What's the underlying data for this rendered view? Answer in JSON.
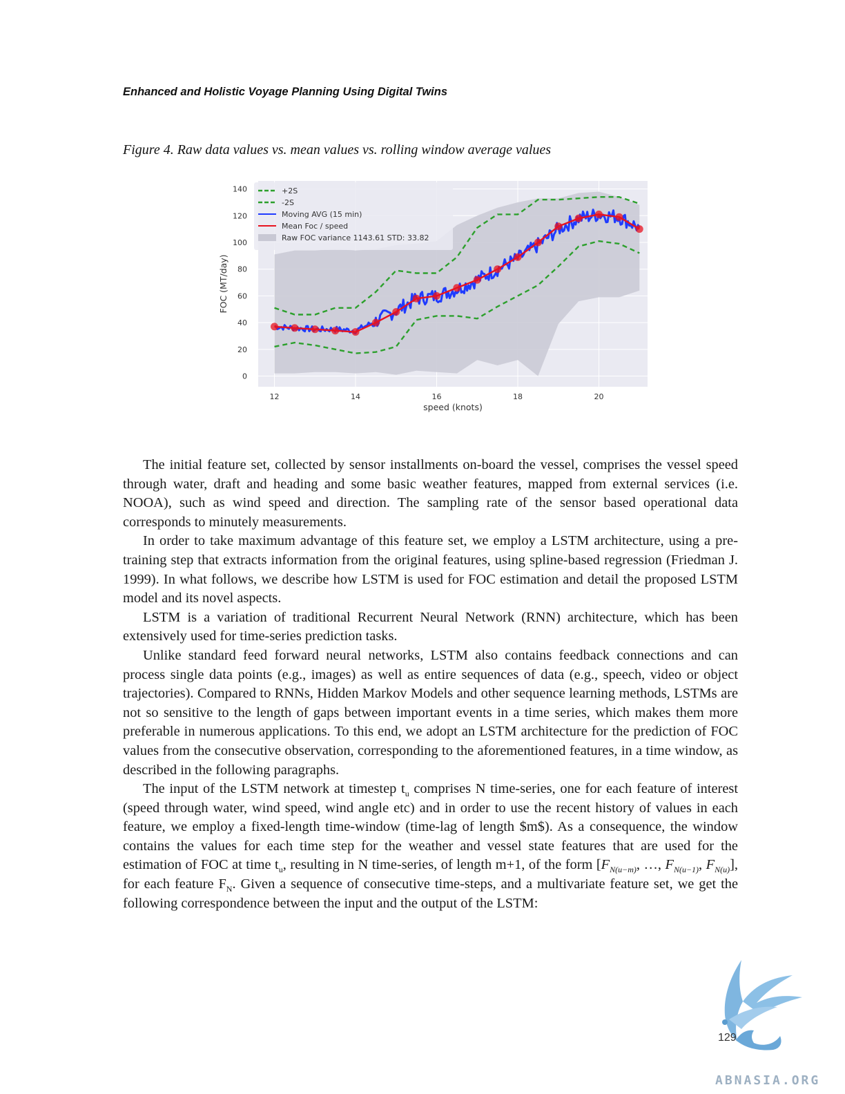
{
  "header": {
    "running_title": "Enhanced and Holistic Voyage Planning Using Digital Twins"
  },
  "figure": {
    "caption": "Figure 4. Raw data values vs. mean values vs. rolling window average values"
  },
  "chart_data": {
    "type": "line",
    "xlabel": "speed (knots)",
    "ylabel": "FOC (MT/day)",
    "xlim": [
      11.6,
      21.2
    ],
    "ylim": [
      -8,
      146
    ],
    "x_ticks": [
      12,
      14,
      16,
      18,
      20
    ],
    "y_ticks": [
      0,
      20,
      40,
      60,
      80,
      100,
      120,
      140
    ],
    "grid": true,
    "legend_placement": "top-left",
    "legend": [
      {
        "label": "+2S",
        "color": "#2ca02c",
        "style": "dashed"
      },
      {
        "label": "-2S",
        "color": "#2ca02c",
        "style": "dashed"
      },
      {
        "label": "Moving AVG (15 min)",
        "color": "#1f3bff",
        "style": "solid"
      },
      {
        "label": "Mean Foc / speed",
        "color": "#e8131f",
        "style": "solid"
      },
      {
        "label": "Raw FOC variance  1143.61 STD: 33.82",
        "color": "#c8c8d4",
        "style": "patch"
      }
    ],
    "colors": {
      "background": "#eaeaf2",
      "variance_fill": "#cbcbd6",
      "two_sigma": "#2ca02c",
      "moving_avg": "#1f3bff",
      "mean": "#e8131f"
    },
    "series": [
      {
        "name": "+2S",
        "x": [
          12.0,
          12.5,
          13.0,
          13.5,
          14.0,
          14.5,
          15.0,
          15.5,
          16.0,
          16.5,
          17.0,
          17.5,
          18.0,
          18.5,
          19.0,
          19.5,
          20.0,
          20.5,
          21.0
        ],
        "values": [
          51,
          46,
          46,
          51,
          51,
          63,
          79,
          77,
          77,
          89,
          111,
          121,
          121,
          132,
          132,
          133,
          134,
          134,
          129
        ]
      },
      {
        "name": "-2S",
        "x": [
          12.0,
          12.5,
          13.0,
          13.5,
          14.0,
          14.5,
          15.0,
          15.5,
          16.0,
          16.5,
          17.0,
          17.5,
          18.0,
          18.5,
          19.0,
          19.5,
          20.0,
          20.5,
          21.0
        ],
        "values": [
          22,
          25,
          23,
          20,
          17,
          18,
          22,
          42,
          45,
          45,
          43,
          52,
          60,
          68,
          82,
          97,
          101,
          99,
          92
        ]
      },
      {
        "name": "Mean Foc / speed",
        "x": [
          12.0,
          12.5,
          13.0,
          13.5,
          14.0,
          14.5,
          15.0,
          15.5,
          16.0,
          16.5,
          17.0,
          17.5,
          18.0,
          18.5,
          19.0,
          19.5,
          20.0,
          20.5,
          21.0
        ],
        "values": [
          37,
          36,
          35,
          34,
          33,
          40,
          48,
          58,
          60,
          66,
          72,
          80,
          89,
          100,
          112,
          118,
          121,
          119,
          110
        ]
      },
      {
        "name": "Moving AVG (15 min)",
        "x": [
          12.0,
          12.5,
          13.0,
          13.5,
          14.0,
          14.5,
          15.0,
          15.5,
          16.0,
          16.5,
          17.0,
          17.5,
          18.0,
          18.5,
          19.0,
          19.5,
          20.0,
          20.5,
          21.0
        ],
        "values": [
          37,
          36,
          35,
          35,
          34,
          41,
          49,
          58,
          60,
          65,
          72,
          80,
          88,
          98,
          110,
          118,
          121,
          119,
          111
        ]
      },
      {
        "name": "Raw FOC variance  1143.61 STD: 33.82",
        "x": [
          12.0,
          12.5,
          13.0,
          13.5,
          14.0,
          14.5,
          15.0,
          15.5,
          16.0,
          16.5,
          17.0,
          17.5,
          18.0,
          18.5,
          19.0,
          19.5,
          20.0,
          20.5,
          21.0
        ],
        "upper": [
          91,
          94,
          94,
          95,
          94,
          95,
          98,
          99,
          101,
          113,
          120,
          126,
          130,
          133,
          133,
          137,
          138,
          134,
          128
        ],
        "lower": [
          2,
          2,
          3,
          3,
          2,
          3,
          1,
          4,
          3,
          2,
          12,
          8,
          12,
          0,
          39,
          56,
          59,
          59,
          64
        ]
      }
    ]
  },
  "body": {
    "p1": "The initial feature set, collected by sensor installments on-board the vessel, comprises the vessel speed through water, draft and heading and some basic weather features, mapped from external services (i.e. NOOA), such as wind speed and direction. The sampling rate of the sensor based operational data corresponds to minutely measurements.",
    "p2": "In order to take maximum advantage of this feature set, we employ a LSTM architecture, using a pre-training step that extracts information from the original features, using spline-based regression (Friedman J. 1999). In what follows, we describe how LSTM is used for FOC estimation and detail the proposed LSTM model and its novel aspects.",
    "p3": "LSTM is a variation of traditional Recurrent Neural Network (RNN) architecture, which has been extensively used for time-series prediction tasks.",
    "p4": "Unlike standard feed forward neural networks, LSTM also contains feedback connections and can process single data points (e.g., images) as well as entire sequences of data (e.g., speech, video or object trajectories). Compared to RNNs, Hidden Markov Models and other sequence learning methods, LSTMs are not so sensitive to the length of gaps between important events in a time series, which makes them more preferable in numerous applications. To this end, we adopt an LSTM architecture for the prediction of FOC values from the consecutive observation, corresponding to the aforementioned features, in a time window, as described in the following paragraphs.",
    "p5": {
      "t1": "The input of the LSTM network at timestep t",
      "s1": "u",
      "t2": " comprises N time-series, one for each feature of interest (speed through water, wind speed, wind angle etc) and in order to use the recent history of values in each feature, we employ a fixed-length time-window (time-lag of length $m$). As a consequence, the window contains the values for each time step for the weather and vessel state features that are used for the estimation of FOC at time t",
      "s2": "u",
      "t3": ", resulting in N time-series, of length m+1, of the form [",
      "f1": "F",
      "f1s": "N(u−m)",
      "t4": ", …, ",
      "f2": "F",
      "f2s": "N(u−1)",
      "t5": ", ",
      "f3": "F",
      "f3s": "N(u)",
      "t6": "], for each feature F",
      "s3": "N",
      "t7": ". Given a sequence of consecutive time-steps, and a multivariate feature set, we get the following correspondence between the input and the output of the LSTM:"
    }
  },
  "footer": {
    "page_number": "129",
    "watermark": "ABNASIA.ORG"
  }
}
